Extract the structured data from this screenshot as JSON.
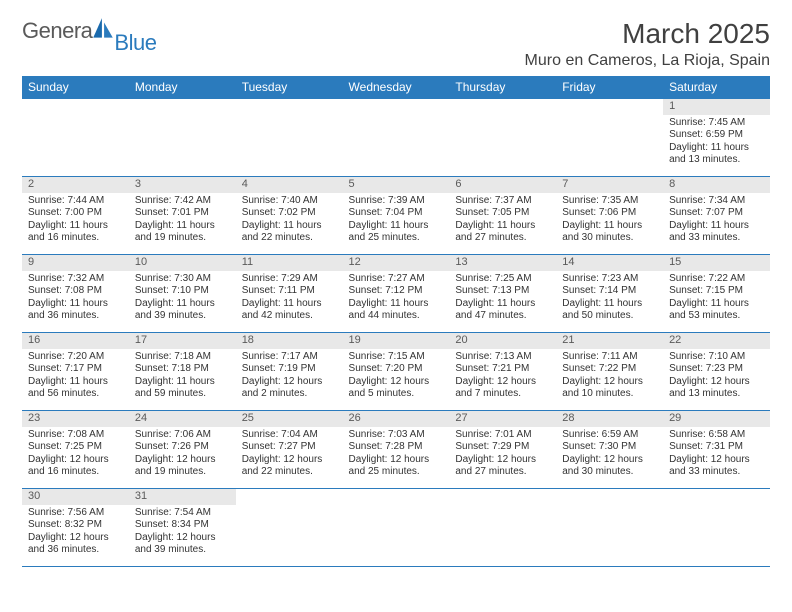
{
  "logo": {
    "word1": "Genera",
    "word2": "Blue"
  },
  "title": "March 2025",
  "location": "Muro en Cameros, La Rioja, Spain",
  "colors": {
    "header_bg": "#2b7bbd",
    "header_fg": "#ffffff",
    "daynum_bg": "#e8e8e8",
    "border": "#2b7bbd",
    "text": "#333333",
    "logo_gray": "#5a5a5a",
    "logo_blue": "#2b7bbd"
  },
  "day_headers": [
    "Sunday",
    "Monday",
    "Tuesday",
    "Wednesday",
    "Thursday",
    "Friday",
    "Saturday"
  ],
  "weeks": [
    [
      null,
      null,
      null,
      null,
      null,
      null,
      {
        "n": "1",
        "sr": "7:45 AM",
        "ss": "6:59 PM",
        "dl": "11 hours and 13 minutes."
      }
    ],
    [
      {
        "n": "2",
        "sr": "7:44 AM",
        "ss": "7:00 PM",
        "dl": "11 hours and 16 minutes."
      },
      {
        "n": "3",
        "sr": "7:42 AM",
        "ss": "7:01 PM",
        "dl": "11 hours and 19 minutes."
      },
      {
        "n": "4",
        "sr": "7:40 AM",
        "ss": "7:02 PM",
        "dl": "11 hours and 22 minutes."
      },
      {
        "n": "5",
        "sr": "7:39 AM",
        "ss": "7:04 PM",
        "dl": "11 hours and 25 minutes."
      },
      {
        "n": "6",
        "sr": "7:37 AM",
        "ss": "7:05 PM",
        "dl": "11 hours and 27 minutes."
      },
      {
        "n": "7",
        "sr": "7:35 AM",
        "ss": "7:06 PM",
        "dl": "11 hours and 30 minutes."
      },
      {
        "n": "8",
        "sr": "7:34 AM",
        "ss": "7:07 PM",
        "dl": "11 hours and 33 minutes."
      }
    ],
    [
      {
        "n": "9",
        "sr": "7:32 AM",
        "ss": "7:08 PM",
        "dl": "11 hours and 36 minutes."
      },
      {
        "n": "10",
        "sr": "7:30 AM",
        "ss": "7:10 PM",
        "dl": "11 hours and 39 minutes."
      },
      {
        "n": "11",
        "sr": "7:29 AM",
        "ss": "7:11 PM",
        "dl": "11 hours and 42 minutes."
      },
      {
        "n": "12",
        "sr": "7:27 AM",
        "ss": "7:12 PM",
        "dl": "11 hours and 44 minutes."
      },
      {
        "n": "13",
        "sr": "7:25 AM",
        "ss": "7:13 PM",
        "dl": "11 hours and 47 minutes."
      },
      {
        "n": "14",
        "sr": "7:23 AM",
        "ss": "7:14 PM",
        "dl": "11 hours and 50 minutes."
      },
      {
        "n": "15",
        "sr": "7:22 AM",
        "ss": "7:15 PM",
        "dl": "11 hours and 53 minutes."
      }
    ],
    [
      {
        "n": "16",
        "sr": "7:20 AM",
        "ss": "7:17 PM",
        "dl": "11 hours and 56 minutes."
      },
      {
        "n": "17",
        "sr": "7:18 AM",
        "ss": "7:18 PM",
        "dl": "11 hours and 59 minutes."
      },
      {
        "n": "18",
        "sr": "7:17 AM",
        "ss": "7:19 PM",
        "dl": "12 hours and 2 minutes."
      },
      {
        "n": "19",
        "sr": "7:15 AM",
        "ss": "7:20 PM",
        "dl": "12 hours and 5 minutes."
      },
      {
        "n": "20",
        "sr": "7:13 AM",
        "ss": "7:21 PM",
        "dl": "12 hours and 7 minutes."
      },
      {
        "n": "21",
        "sr": "7:11 AM",
        "ss": "7:22 PM",
        "dl": "12 hours and 10 minutes."
      },
      {
        "n": "22",
        "sr": "7:10 AM",
        "ss": "7:23 PM",
        "dl": "12 hours and 13 minutes."
      }
    ],
    [
      {
        "n": "23",
        "sr": "7:08 AM",
        "ss": "7:25 PM",
        "dl": "12 hours and 16 minutes."
      },
      {
        "n": "24",
        "sr": "7:06 AM",
        "ss": "7:26 PM",
        "dl": "12 hours and 19 minutes."
      },
      {
        "n": "25",
        "sr": "7:04 AM",
        "ss": "7:27 PM",
        "dl": "12 hours and 22 minutes."
      },
      {
        "n": "26",
        "sr": "7:03 AM",
        "ss": "7:28 PM",
        "dl": "12 hours and 25 minutes."
      },
      {
        "n": "27",
        "sr": "7:01 AM",
        "ss": "7:29 PM",
        "dl": "12 hours and 27 minutes."
      },
      {
        "n": "28",
        "sr": "6:59 AM",
        "ss": "7:30 PM",
        "dl": "12 hours and 30 minutes."
      },
      {
        "n": "29",
        "sr": "6:58 AM",
        "ss": "7:31 PM",
        "dl": "12 hours and 33 minutes."
      }
    ],
    [
      {
        "n": "30",
        "sr": "7:56 AM",
        "ss": "8:32 PM",
        "dl": "12 hours and 36 minutes."
      },
      {
        "n": "31",
        "sr": "7:54 AM",
        "ss": "8:34 PM",
        "dl": "12 hours and 39 minutes."
      },
      null,
      null,
      null,
      null,
      null
    ]
  ],
  "labels": {
    "sunrise": "Sunrise: ",
    "sunset": "Sunset: ",
    "daylight": "Daylight: "
  }
}
